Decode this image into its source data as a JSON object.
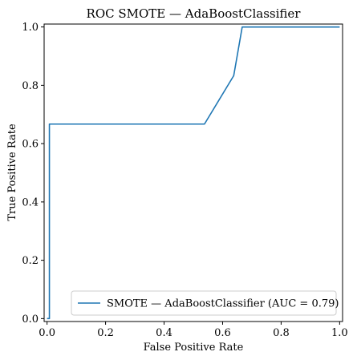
{
  "chart_data": {
    "type": "line",
    "title": "ROC SMOTE — AdaBoostClassifier",
    "xlabel": "False Positive Rate",
    "ylabel": "True Positive Rate",
    "xlim": [
      -0.01,
      1.01
    ],
    "ylim": [
      -0.01,
      1.01
    ],
    "xticks": [
      0.0,
      0.2,
      0.4,
      0.6,
      0.8,
      1.0
    ],
    "yticks": [
      0.0,
      0.2,
      0.4,
      0.6,
      0.8,
      1.0
    ],
    "xtick_labels": [
      "0.0",
      "0.2",
      "0.4",
      "0.6",
      "0.8",
      "1.0"
    ],
    "ytick_labels": [
      "0.0",
      "0.2",
      "0.4",
      "0.6",
      "0.8",
      "1.0"
    ],
    "grid": false,
    "legend_position": "lower-right",
    "series": [
      {
        "name": "SMOTE — AdaBoostClassifier (AUC = 0.79)",
        "color": "#1f77b4",
        "x": [
          0.0,
          0.0,
          0.008,
          0.008,
          0.538,
          0.638,
          0.667,
          0.667,
          1.0
        ],
        "y": [
          0.0,
          0.0,
          0.0,
          0.667,
          0.667,
          0.833,
          1.0,
          1.0,
          1.0
        ]
      }
    ]
  }
}
